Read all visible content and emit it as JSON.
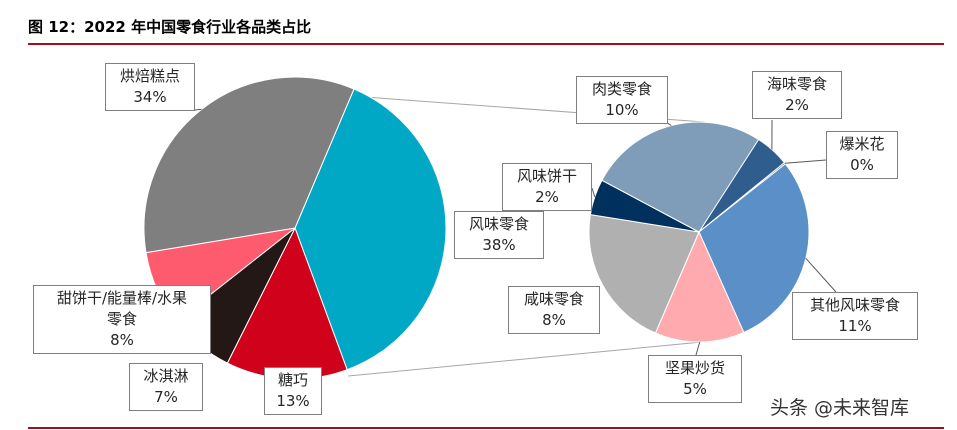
{
  "header": {
    "title": "图 12：2022 年中国零食行业各品类占比"
  },
  "watermark": "头条 @未来智库",
  "chart_data": [
    {
      "type": "pie",
      "slices": [
        {
          "label": "风味零食",
          "value": 38,
          "value_label": "38%",
          "color": "#00a8c6"
        },
        {
          "label": "糖巧",
          "value": 13,
          "value_label": "13%",
          "color": "#d0021b"
        },
        {
          "label": "冰淇淋",
          "value": 7,
          "value_label": "7%",
          "color": "#231815"
        },
        {
          "label": "甜饼干/能量棒/水果零食",
          "label_lines": [
            "甜饼干/能量棒/水果",
            "零食"
          ],
          "value": 8,
          "value_label": "8%",
          "color": "#ff5b6e"
        },
        {
          "label": "烘焙糕点",
          "value": 34,
          "value_label": "34%",
          "color": "#7f7f7f"
        }
      ]
    },
    {
      "type": "pie",
      "slices": [
        {
          "label": "海味零食",
          "value": 2,
          "value_label": "2%",
          "color": "#2f5e8e"
        },
        {
          "label": "爆米花",
          "value": 0,
          "value_label": "0%",
          "color": "#2f5e8e"
        },
        {
          "label": "其他风味零食",
          "value": 11,
          "value_label": "11%",
          "color": "#5b8fc7"
        },
        {
          "label": "坚果炒货",
          "value": 5,
          "value_label": "5%",
          "color": "#ffaaaf"
        },
        {
          "label": "咸味零食",
          "value": 8,
          "value_label": "8%",
          "color": "#b0b0b0"
        },
        {
          "label": "风味饼干",
          "value": 2,
          "value_label": "2%",
          "color": "#00305e"
        },
        {
          "label": "肉类零食",
          "value": 10,
          "value_label": "10%",
          "color": "#7f9db9"
        }
      ]
    }
  ]
}
